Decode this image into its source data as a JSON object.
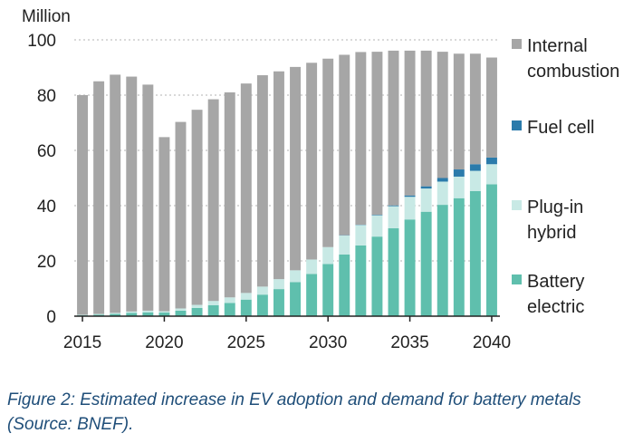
{
  "chart_data": {
    "type": "bar",
    "stacked": true,
    "unit_label": "Million",
    "caption": "Figure 2: Estimated increase in EV adoption and demand for battery metals (Source: BNEF).",
    "ylim": [
      0,
      100
    ],
    "y_ticks": [
      0,
      20,
      40,
      60,
      80,
      100
    ],
    "x_tick_labels": [
      "2015",
      "2020",
      "2025",
      "2030",
      "2035",
      "2040"
    ],
    "categories": [
      2015,
      2016,
      2017,
      2018,
      2019,
      2020,
      2021,
      2022,
      2023,
      2024,
      2025,
      2026,
      2027,
      2028,
      2029,
      2030,
      2031,
      2032,
      2033,
      2034,
      2035,
      2036,
      2037,
      2038,
      2039,
      2040
    ],
    "series": [
      {
        "name": "Battery electric",
        "legend": [
          "Battery",
          "electric"
        ],
        "color": "#5fbfad",
        "values": [
          0.3,
          0.5,
          0.8,
          1.2,
          1.4,
          1.3,
          2.0,
          3.0,
          4.0,
          4.8,
          6.0,
          7.8,
          9.8,
          12.3,
          15.3,
          18.9,
          22.3,
          25.6,
          28.8,
          31.8,
          35.0,
          37.8,
          40.3,
          42.7,
          45.3,
          47.7
        ]
      },
      {
        "name": "Plug-in hybrid",
        "legend": [
          "Plug-in",
          "hybrid"
        ],
        "color": "#c8e9e5",
        "values": [
          0.2,
          0.3,
          0.4,
          0.5,
          0.6,
          0.5,
          0.8,
          1.1,
          1.5,
          2.0,
          2.4,
          2.9,
          3.6,
          4.3,
          5.2,
          6.1,
          6.9,
          7.4,
          7.7,
          8.0,
          8.2,
          8.4,
          8.4,
          7.8,
          7.3,
          7.3
        ]
      },
      {
        "name": "Fuel cell",
        "legend": [
          "Fuel cell"
        ],
        "color": "#2b7bab",
        "values": [
          0,
          0,
          0,
          0,
          0,
          0,
          0,
          0,
          0,
          0,
          0,
          0,
          0,
          0,
          0,
          0,
          0.1,
          0.1,
          0.2,
          0.3,
          0.5,
          0.8,
          1.3,
          2.6,
          2.4,
          2.4
        ]
      },
      {
        "name": "Internal combustion",
        "legend": [
          "Internal",
          "combustion"
        ],
        "color": "#a6a6a6",
        "values": [
          79.5,
          84.2,
          86.2,
          85.0,
          81.8,
          63.0,
          67.5,
          70.6,
          73.0,
          74.2,
          75.8,
          76.5,
          75.2,
          73.6,
          71.2,
          68.2,
          65.3,
          62.5,
          59.0,
          56.0,
          52.4,
          49.1,
          45.7,
          41.9,
          40.0,
          36.2
        ]
      }
    ]
  }
}
